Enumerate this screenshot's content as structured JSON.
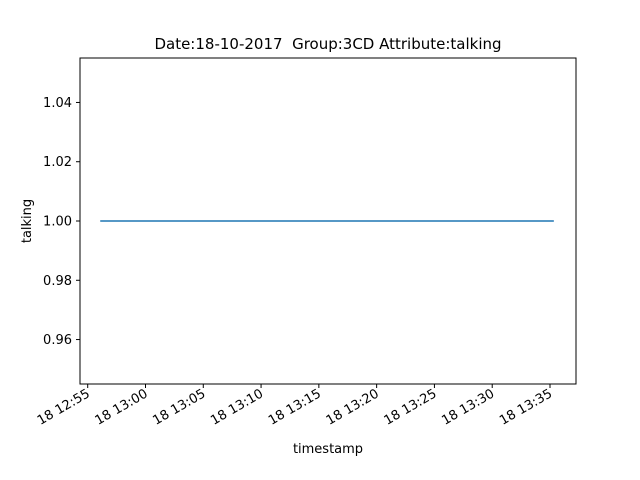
{
  "chart_data": {
    "type": "line",
    "title": "Date:18-10-2017  Group:3CD Attribute:talking",
    "xlabel": "timestamp",
    "ylabel": "talking",
    "x_axis_type": "time",
    "x_range": [
      "2017-10-18 12:54:20",
      "2017-10-18 13:37:15"
    ],
    "ylim": [
      0.945,
      1.055
    ],
    "x_ticks": [
      {
        "t": "2017-10-18 12:55",
        "label": "18 12:55"
      },
      {
        "t": "2017-10-18 13:00",
        "label": "18 13:00"
      },
      {
        "t": "2017-10-18 13:05",
        "label": "18 13:05"
      },
      {
        "t": "2017-10-18 13:10",
        "label": "18 13:10"
      },
      {
        "t": "2017-10-18 13:15",
        "label": "18 13:15"
      },
      {
        "t": "2017-10-18 13:20",
        "label": "18 13:20"
      },
      {
        "t": "2017-10-18 13:25",
        "label": "18 13:25"
      },
      {
        "t": "2017-10-18 13:30",
        "label": "18 13:30"
      },
      {
        "t": "2017-10-18 13:35",
        "label": "18 13:35"
      }
    ],
    "y_ticks": [
      {
        "v": 0.96,
        "label": "0.96"
      },
      {
        "v": 0.98,
        "label": "0.98"
      },
      {
        "v": 1.0,
        "label": "1.00"
      },
      {
        "v": 1.02,
        "label": "1.02"
      },
      {
        "v": 1.04,
        "label": "1.04"
      }
    ],
    "series": [
      {
        "color": "#1f77b4",
        "x": [
          "2017-10-18 12:56:05",
          "2017-10-18 13:35:20"
        ],
        "y": [
          1.0,
          1.0
        ]
      }
    ],
    "grid": false,
    "legend": "none"
  }
}
